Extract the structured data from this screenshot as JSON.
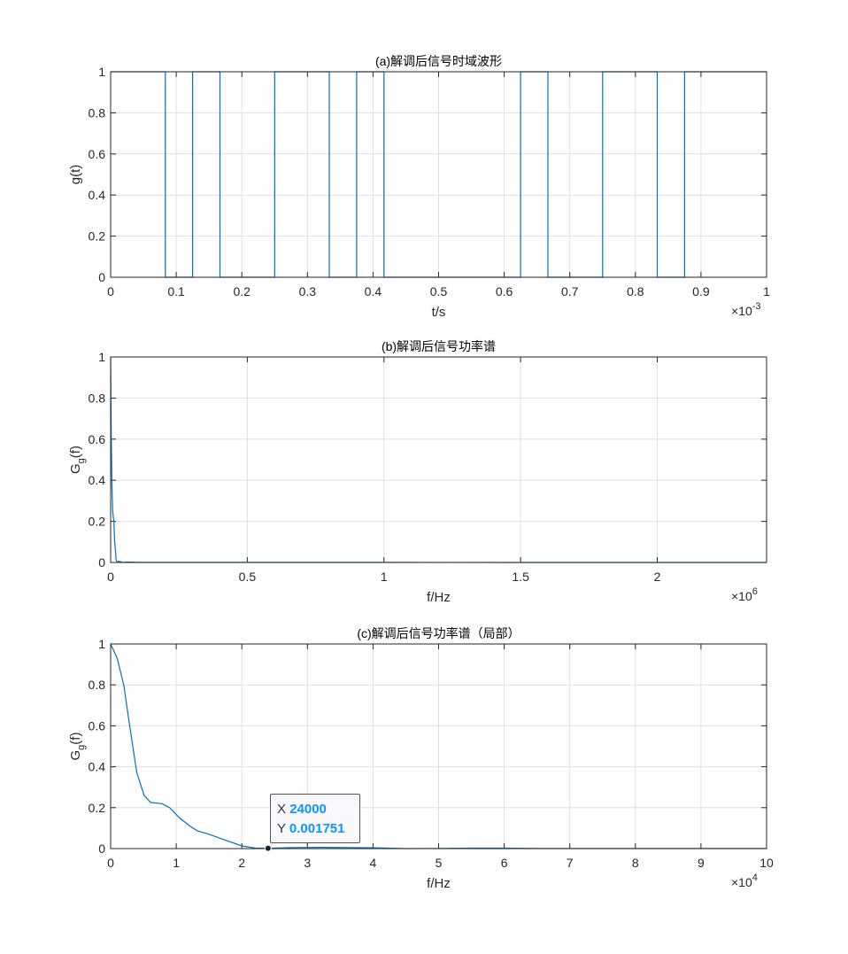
{
  "chart_data": [
    {
      "type": "line",
      "title": "(a)解调后信号时域波形",
      "xlabel": "t/s",
      "ylabel": "g(t)",
      "x_exponent": "-3",
      "xlim": [
        0,
        1
      ],
      "ylim": [
        0,
        1
      ],
      "grid": true,
      "xticks": [
        "0",
        "0.1",
        "0.2",
        "0.3",
        "0.4",
        "0.5",
        "0.6",
        "0.7",
        "0.8",
        "0.9",
        "1"
      ],
      "yticks": [
        "0",
        "0.2",
        "0.4",
        "0.6",
        "0.8",
        "1"
      ],
      "step": true,
      "bit_duration": 0.041667,
      "bits": [
        1,
        1,
        0,
        1,
        0,
        0,
        1,
        1,
        0,
        1,
        0,
        0,
        0,
        0,
        0,
        1,
        0,
        0,
        1,
        1,
        0,
        1,
        1,
        1
      ],
      "color": "#0072bd"
    },
    {
      "type": "line",
      "title": "(b)解调后信号功率谱",
      "xlabel": "f/Hz",
      "ylabel": "G_g(f)",
      "x_exponent": "6",
      "xlim": [
        0,
        2.4
      ],
      "ylim": [
        0,
        1
      ],
      "grid": true,
      "xticks": [
        "0",
        "0.5",
        "1",
        "1.5",
        "2"
      ],
      "xtick_values": [
        0,
        0.5,
        1,
        1.5,
        2
      ],
      "yticks": [
        "0",
        "0.2",
        "0.4",
        "0.6",
        "0.8",
        "1"
      ],
      "x": [
        0,
        0.0024,
        0.0048,
        0.0072,
        0.0096,
        0.012,
        0.0144,
        0.0168,
        0.02,
        0.024,
        0.03,
        0.036,
        0.045,
        0.06,
        0.1,
        0.5,
        1,
        1.5,
        2,
        2.4
      ],
      "y": [
        1,
        0.6,
        0.37,
        0.26,
        0.22,
        0.2,
        0.11,
        0.07,
        0.013,
        0.0018,
        0.006,
        0.004,
        0.0,
        0.002,
        0.001,
        0.0005,
        0.0003,
        0.0002,
        0.0001,
        0.0001
      ],
      "color": "#0072bd"
    },
    {
      "type": "line",
      "title": "(c)解调后信号功率谱（局部）",
      "xlabel": "f/Hz",
      "ylabel": "G_g(f)",
      "x_exponent": "4",
      "xlim": [
        0,
        10
      ],
      "ylim": [
        0,
        1
      ],
      "grid": true,
      "xticks": [
        "0",
        "1",
        "2",
        "3",
        "4",
        "5",
        "6",
        "7",
        "8",
        "9",
        "10"
      ],
      "xtick_values": [
        0,
        1,
        2,
        3,
        4,
        5,
        6,
        7,
        8,
        9,
        10
      ],
      "yticks": [
        "0",
        "0.2",
        "0.4",
        "0.6",
        "0.8",
        "1"
      ],
      "x": [
        0,
        0.1,
        0.2,
        0.29,
        0.4,
        0.51,
        0.61,
        0.78,
        0.9,
        1.05,
        1.21,
        1.32,
        1.5,
        1.69,
        2.0,
        2.2,
        2.4,
        2.8,
        3.2,
        3.6,
        4.0,
        4.5,
        5,
        5.5,
        6,
        6.5,
        7,
        8,
        9,
        10
      ],
      "y": [
        1,
        0.93,
        0.8,
        0.6,
        0.37,
        0.26,
        0.225,
        0.22,
        0.2,
        0.15,
        0.11,
        0.087,
        0.07,
        0.048,
        0.013,
        0.003,
        0.00175,
        0.005,
        0.006,
        0.005,
        0.004,
        0.0,
        0.001,
        0.002,
        0.002,
        0.001,
        0.0005,
        0.001,
        0.0005,
        0.0003
      ],
      "color": "#0072bd",
      "datatip": {
        "x_label": "X",
        "x_value": "24000",
        "y_label": "Y",
        "y_value": "0.001751",
        "x": 2.4,
        "y": 0.001751
      }
    }
  ]
}
